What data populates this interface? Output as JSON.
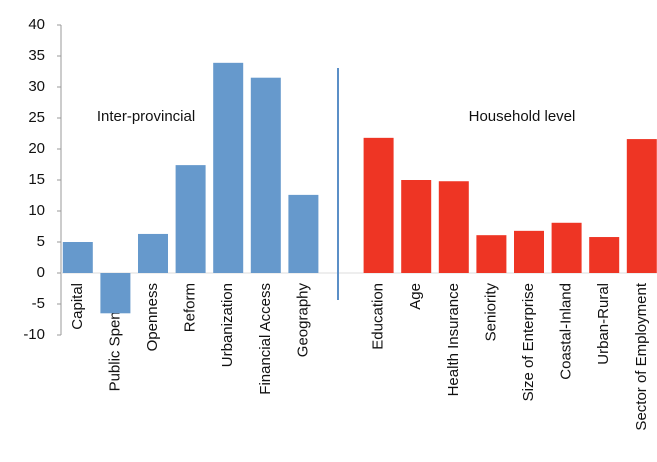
{
  "chart_data": {
    "type": "bar",
    "categories": [
      "Capital",
      "Public Spending",
      "Openness",
      "Reform",
      "Urbanization",
      "Financial Access",
      "Geography",
      null,
      "Education",
      "Age",
      "Health Insurance",
      "Seniority",
      "Size of Enterprise",
      "Coastal-Inland",
      "Urban-Rural",
      "Sector of Employment"
    ],
    "series": [
      {
        "name": "Inter-provincial",
        "color": "#6699cc",
        "values": [
          5.0,
          -6.5,
          6.3,
          17.4,
          33.9,
          31.5,
          12.6,
          null,
          null,
          null,
          null,
          null,
          null,
          null,
          null,
          null
        ]
      },
      {
        "name": "Household level",
        "color": "#ee3524",
        "values": [
          null,
          null,
          null,
          null,
          null,
          null,
          null,
          null,
          21.8,
          15.0,
          14.8,
          6.1,
          6.8,
          8.1,
          5.8,
          21.6
        ]
      }
    ],
    "ylim": [
      -10,
      40
    ],
    "yticks": [
      -10,
      -5,
      0,
      5,
      10,
      15,
      20,
      25,
      30,
      35,
      40
    ]
  }
}
